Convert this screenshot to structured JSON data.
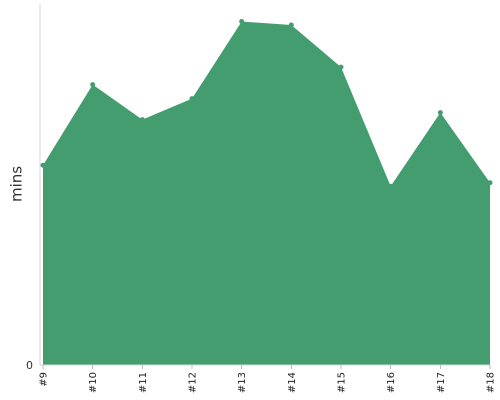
{
  "chart_data": {
    "type": "area",
    "categories": [
      "#9",
      "#10",
      "#11",
      "#12",
      "#13",
      "#14",
      "#15",
      "#16",
      "#17",
      "#18"
    ],
    "series": [
      {
        "values": [
          57,
          80,
          70,
          76,
          98,
          97,
          85,
          51,
          72,
          52
        ]
      }
    ],
    "xlabel": "",
    "ylabel": "mins",
    "ylim": [
      0,
      103
    ],
    "y_ticks": [
      0
    ],
    "y_tick_labels": [
      "0"
    ],
    "grid": false,
    "colors": {
      "area": "#449D6E",
      "axis": "#D6D6D6",
      "text": "#333333"
    }
  }
}
